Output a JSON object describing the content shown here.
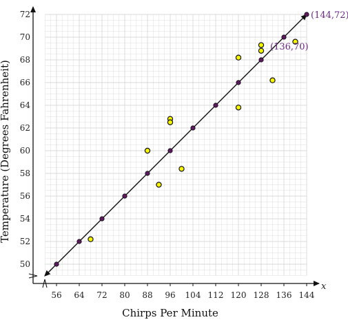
{
  "chart_data": {
    "type": "scatter",
    "xlabel": "Chirps Per Minute",
    "ylabel": "Temperature (Degrees Fahrenheit)",
    "x_axis_letter": "x",
    "xlim": [
      52,
      144
    ],
    "ylim": [
      49,
      72
    ],
    "x_ticks": [
      56,
      64,
      72,
      80,
      88,
      96,
      104,
      112,
      120,
      128,
      136,
      144
    ],
    "y_ticks": [
      50,
      52,
      54,
      56,
      58,
      60,
      62,
      64,
      66,
      68,
      70,
      72
    ],
    "grid": true,
    "colors": {
      "observed_fill": "#f5f500",
      "line_point_fill": "#5b1a5e",
      "label": "#6b2a83",
      "grid": "#d9d9d9"
    },
    "observed_points": [
      {
        "x": 68,
        "y": 52.2
      },
      {
        "x": 88,
        "y": 60
      },
      {
        "x": 92,
        "y": 57
      },
      {
        "x": 96,
        "y": 62.8
      },
      {
        "x": 96,
        "y": 62.5
      },
      {
        "x": 100,
        "y": 58.4
      },
      {
        "x": 120,
        "y": 68.2
      },
      {
        "x": 120,
        "y": 63.8
      },
      {
        "x": 128,
        "y": 69.3
      },
      {
        "x": 128,
        "y": 68.8
      },
      {
        "x": 132,
        "y": 66.2
      },
      {
        "x": 140,
        "y": 69.6
      }
    ],
    "line_points": [
      {
        "x": 56,
        "y": 50
      },
      {
        "x": 64,
        "y": 52
      },
      {
        "x": 72,
        "y": 54
      },
      {
        "x": 80,
        "y": 56
      },
      {
        "x": 88,
        "y": 58
      },
      {
        "x": 96,
        "y": 60
      },
      {
        "x": 104,
        "y": 62
      },
      {
        "x": 112,
        "y": 64
      },
      {
        "x": 120,
        "y": 66
      },
      {
        "x": 128,
        "y": 68
      },
      {
        "x": 136,
        "y": 70
      }
    ],
    "fit_line": {
      "from": {
        "x": 52,
        "y": 49
      },
      "to": {
        "x": 144,
        "y": 72
      }
    },
    "annotations": [
      {
        "text": "(144,72)",
        "x": 144,
        "y": 72
      },
      {
        "text": "(136,70)",
        "x": 136,
        "y": 70
      }
    ]
  }
}
